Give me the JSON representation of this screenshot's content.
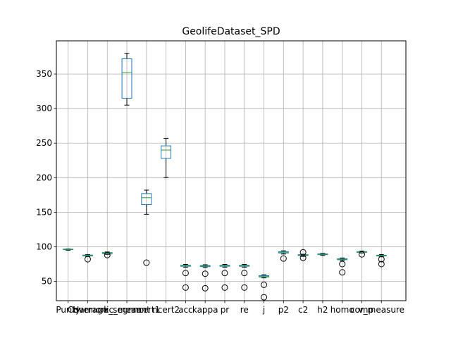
{
  "chart_data": {
    "type": "box",
    "title": "GeolifeDataset_SPD",
    "categories": [
      "Purity",
      "Coverage",
      "Harmonic_mean",
      "k_segment",
      "ncert1",
      "ncert2",
      "acc",
      "kappa",
      "pr",
      "re",
      "j",
      "p2",
      "c2",
      "h2",
      "homo",
      "comp",
      "v_measure"
    ],
    "ylim": [
      22,
      398
    ],
    "yticks": [
      50,
      100,
      150,
      200,
      250,
      300,
      350
    ],
    "grid": true,
    "boxes": [
      {
        "whislo": 95.0,
        "q1": 95.8,
        "med": 96.2,
        "q3": 96.6,
        "whishi": 97.0,
        "fliers": []
      },
      {
        "whislo": 86.0,
        "q1": 86.8,
        "med": 87.5,
        "q3": 88.0,
        "whishi": 88.8,
        "fliers": [
          82
        ]
      },
      {
        "whislo": 89.0,
        "q1": 90.2,
        "med": 91.0,
        "q3": 91.6,
        "whishi": 92.5,
        "fliers": [
          88
        ]
      },
      {
        "whislo": 305,
        "q1": 315,
        "med": 352,
        "q3": 372,
        "whishi": 380,
        "fliers": []
      },
      {
        "whislo": 147,
        "q1": 161,
        "med": 171,
        "q3": 177,
        "whishi": 182,
        "fliers": [
          77
        ]
      },
      {
        "whislo": 200,
        "q1": 228,
        "med": 240,
        "q3": 246,
        "whishi": 257,
        "fliers": []
      },
      {
        "whislo": 70.5,
        "q1": 71.8,
        "med": 72.5,
        "q3": 73.2,
        "whishi": 74.5,
        "fliers": [
          62,
          41
        ]
      },
      {
        "whislo": 70.0,
        "q1": 71.3,
        "med": 72.0,
        "q3": 72.8,
        "whishi": 74.0,
        "fliers": [
          61,
          40
        ]
      },
      {
        "whislo": 70.5,
        "q1": 71.8,
        "med": 72.5,
        "q3": 73.2,
        "whishi": 74.5,
        "fliers": [
          62,
          41
        ]
      },
      {
        "whislo": 70.5,
        "q1": 71.8,
        "med": 72.5,
        "q3": 73.2,
        "whishi": 74.5,
        "fliers": [
          62,
          41
        ]
      },
      {
        "whislo": 55.0,
        "q1": 56.3,
        "med": 57.0,
        "q3": 58.2,
        "whishi": 59.5,
        "fliers": [
          45,
          27
        ]
      },
      {
        "whislo": 89.5,
        "q1": 91.0,
        "med": 92.2,
        "q3": 93.0,
        "whishi": 94.2,
        "fliers": [
          83
        ]
      },
      {
        "whislo": 86.0,
        "q1": 87.3,
        "med": 88.0,
        "q3": 88.6,
        "whishi": 89.2,
        "fliers": [
          92,
          84
        ]
      },
      {
        "whislo": 87.5,
        "q1": 88.6,
        "med": 89.2,
        "q3": 89.7,
        "whishi": 90.5,
        "fliers": []
      },
      {
        "whislo": 80.0,
        "q1": 81.3,
        "med": 82.0,
        "q3": 82.6,
        "whishi": 83.8,
        "fliers": [
          75,
          63
        ]
      },
      {
        "whislo": 91.0,
        "q1": 92.0,
        "med": 92.5,
        "q3": 93.0,
        "whishi": 93.8,
        "fliers": [
          89
        ]
      },
      {
        "whislo": 85.5,
        "q1": 86.8,
        "med": 87.3,
        "q3": 87.8,
        "whishi": 88.8,
        "fliers": [
          82,
          75
        ]
      }
    ]
  }
}
